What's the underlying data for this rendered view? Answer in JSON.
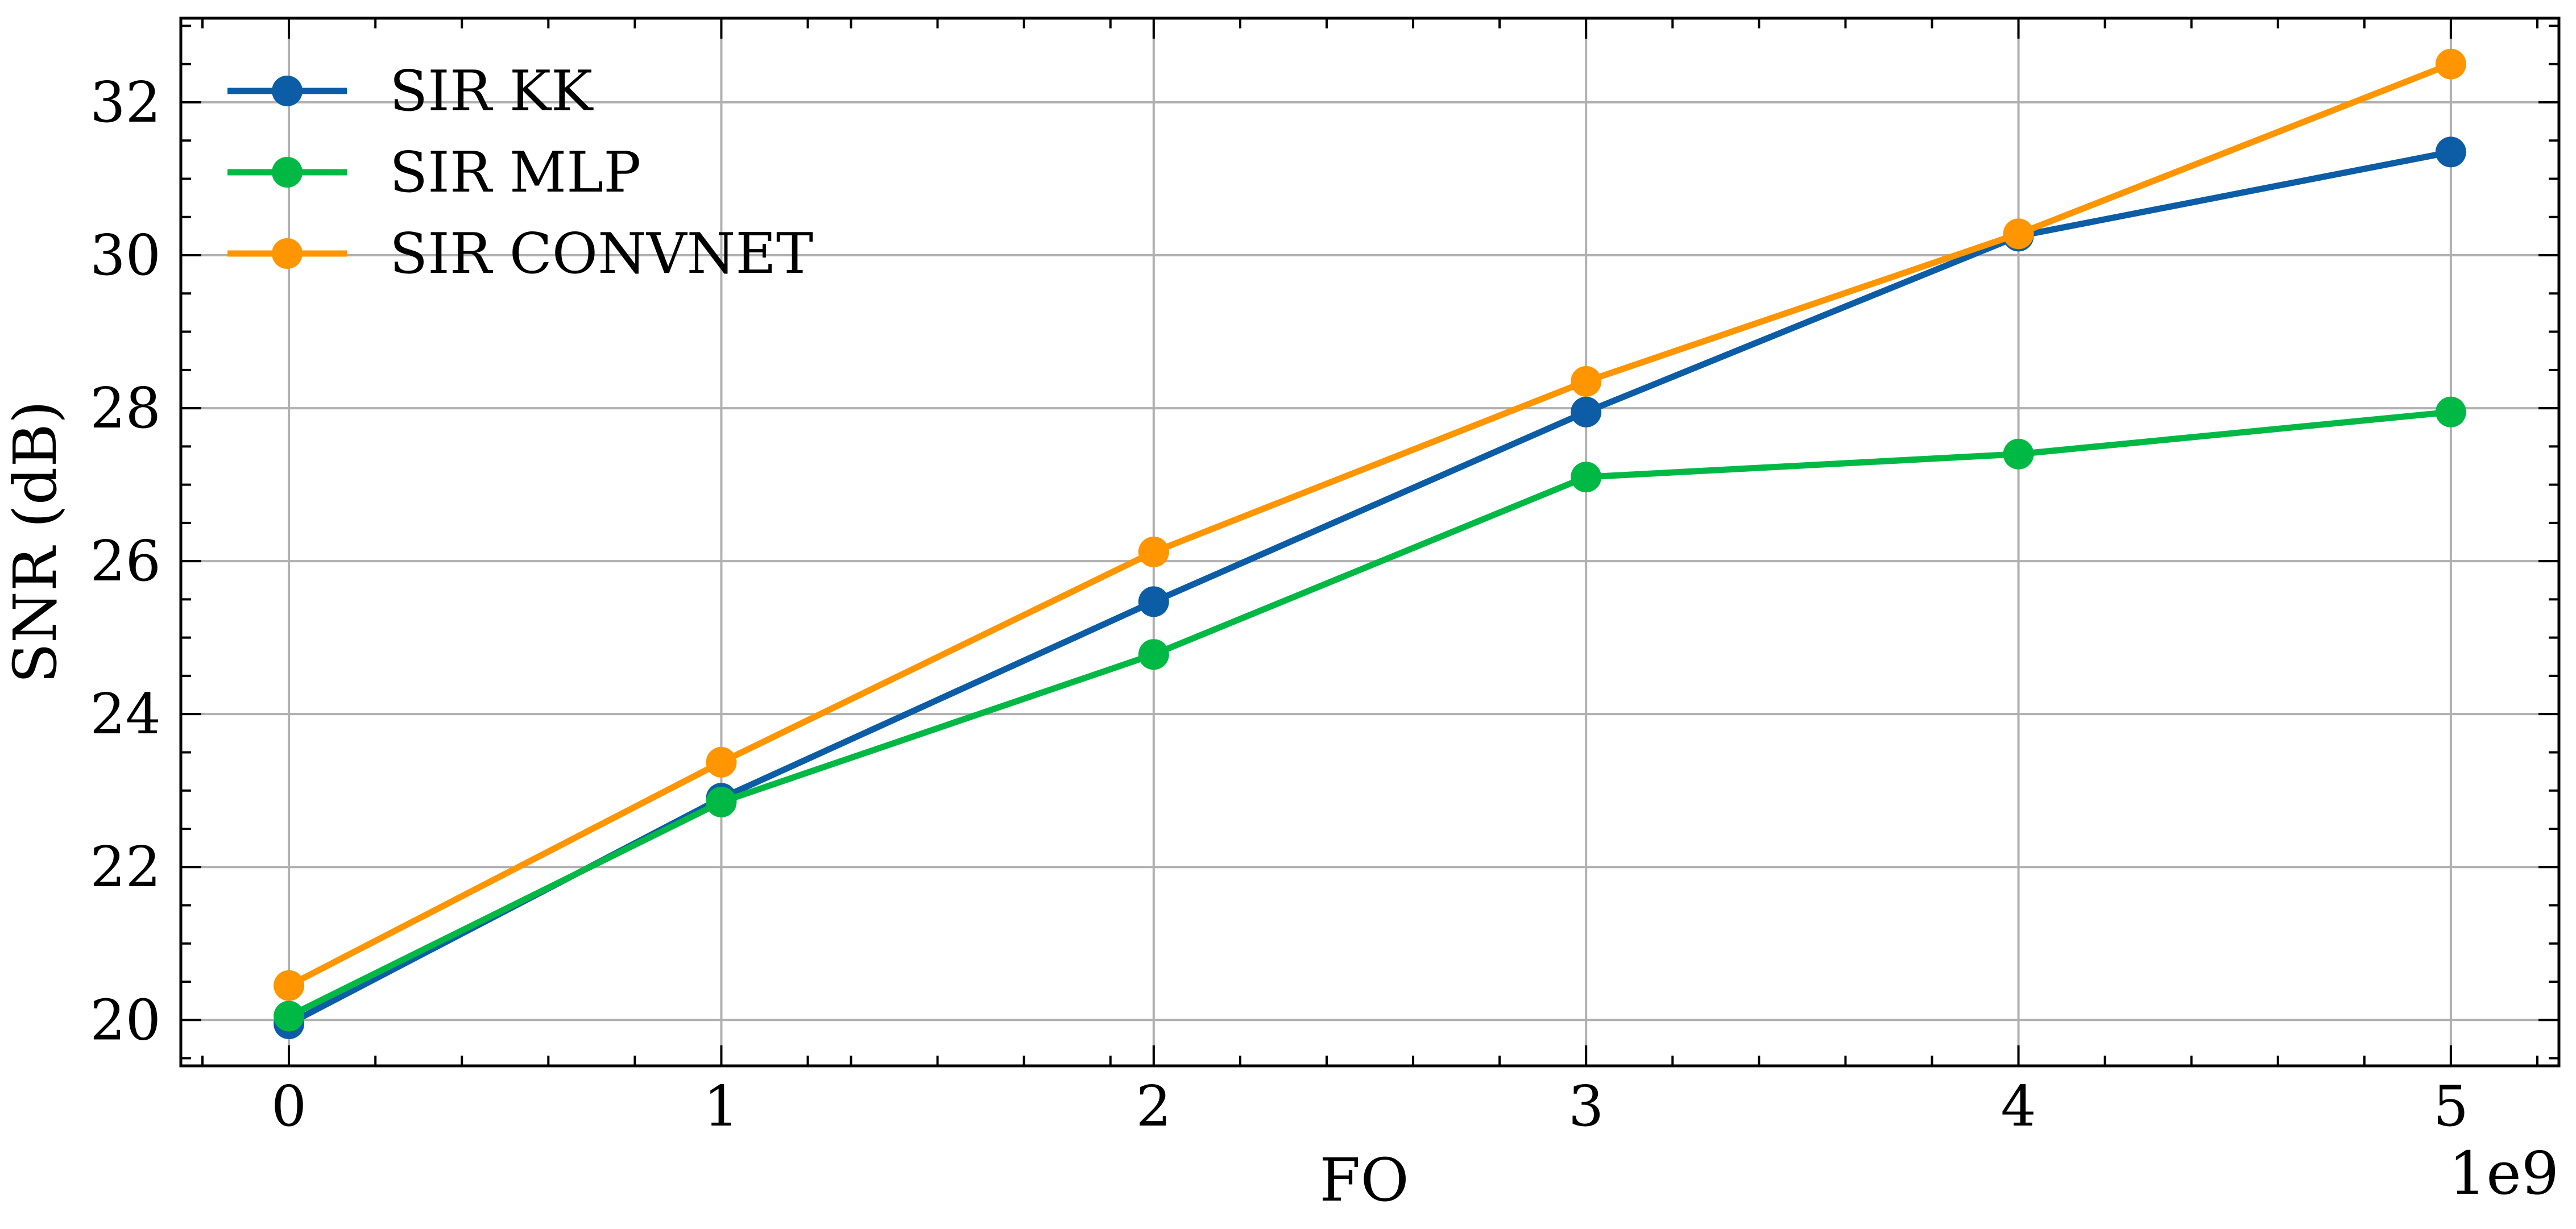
{
  "chart_data": {
    "type": "line",
    "title": "",
    "xlabel": "FO",
    "ylabel": "SNR (dB)",
    "x_offset_label": "1e9",
    "x": [
      0,
      1,
      2,
      3,
      4,
      5
    ],
    "x_ticks": [
      0,
      1,
      2,
      3,
      4,
      5
    ],
    "x_tick_labels": [
      "0",
      "1",
      "2",
      "3",
      "4",
      "5"
    ],
    "y_ticks": [
      20,
      22,
      24,
      26,
      28,
      30,
      32
    ],
    "y_tick_labels": [
      "20",
      "22",
      "24",
      "26",
      "28",
      "30",
      "32"
    ],
    "xlim": [
      -0.25,
      5.25
    ],
    "ylim": [
      19.4,
      33.1
    ],
    "grid": true,
    "legend_position": "top-left",
    "series": [
      {
        "name": "SIR KK",
        "color": "#0c5da5",
        "values": [
          19.95,
          22.9,
          25.47,
          27.95,
          30.25,
          31.35
        ]
      },
      {
        "name": "SIR MLP",
        "color": "#00b945",
        "values": [
          20.05,
          22.85,
          24.78,
          27.1,
          27.4,
          27.95
        ]
      },
      {
        "name": "SIR CONVNET",
        "color": "#ff9500",
        "values": [
          20.45,
          23.37,
          26.12,
          28.35,
          30.28,
          32.5
        ]
      }
    ]
  }
}
